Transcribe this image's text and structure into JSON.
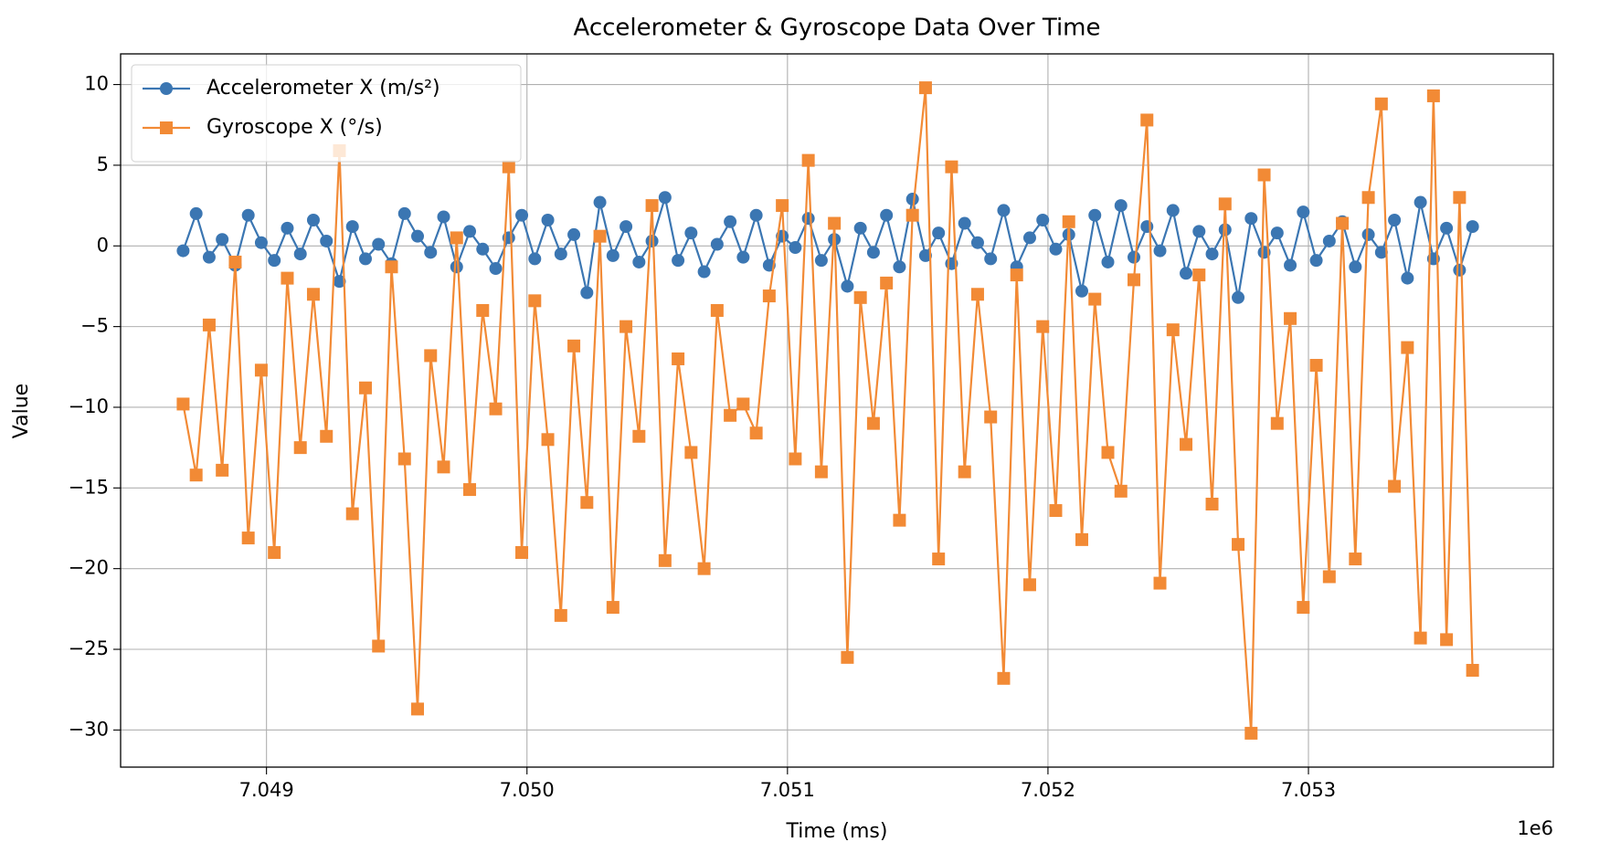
{
  "chart_data": {
    "type": "line",
    "title": "Accelerometer & Gyroscope Data Over Time",
    "x_label": "Time (ms)",
    "y_label": "Value",
    "x_offset_label": "1e6",
    "xlim": [
      7048440,
      7053940
    ],
    "ylim": [
      -32.3,
      11.9
    ],
    "xticks": [
      {
        "value": 7049000,
        "label": "7.049"
      },
      {
        "value": 7050000,
        "label": "7.050"
      },
      {
        "value": 7051000,
        "label": "7.051"
      },
      {
        "value": 7052000,
        "label": "7.052"
      },
      {
        "value": 7053000,
        "label": "7.053"
      }
    ],
    "yticks": [
      10,
      5,
      0,
      {
        "value": -5,
        "label": "−5"
      },
      {
        "value": -10,
        "label": "−10"
      },
      {
        "value": -15,
        "label": "−15"
      },
      {
        "value": -20,
        "label": "−20"
      },
      {
        "value": -25,
        "label": "−25"
      },
      {
        "value": -30,
        "label": "−30"
      }
    ],
    "grid": true,
    "legend": "upper left",
    "x": [
      7048680,
      7048730,
      7048780,
      7048830,
      7048880,
      7048930,
      7048980,
      7049030,
      7049080,
      7049130,
      7049180,
      7049230,
      7049280,
      7049330,
      7049380,
      7049430,
      7049480,
      7049530,
      7049580,
      7049630,
      7049680,
      7049730,
      7049780,
      7049830,
      7049880,
      7049930,
      7049980,
      7050030,
      7050080,
      7050130,
      7050180,
      7050230,
      7050280,
      7050330,
      7050380,
      7050430,
      7050480,
      7050530,
      7050580,
      7050630,
      7050680,
      7050730,
      7050780,
      7050830,
      7050880,
      7050930,
      7050980,
      7051030,
      7051080,
      7051130,
      7051180,
      7051230,
      7051280,
      7051330,
      7051380,
      7051430,
      7051480,
      7051530,
      7051580,
      7051630,
      7051680,
      7051730,
      7051780,
      7051830,
      7051880,
      7051930,
      7051980,
      7052030,
      7052080,
      7052130,
      7052180,
      7052230,
      7052280,
      7052330,
      7052380,
      7052430,
      7052480,
      7052530,
      7052580,
      7052630,
      7052680,
      7052730,
      7052780,
      7052830,
      7052880,
      7052930,
      7052980,
      7053030,
      7053080,
      7053130,
      7053180,
      7053230,
      7053280,
      7053330,
      7053380,
      7053430,
      7053480,
      7053530,
      7053580,
      7053630
    ],
    "series": [
      {
        "name": "Accelerometer X (m/s²)",
        "color": "#3b76b2",
        "marker": "circle",
        "values": [
          -0.3,
          2.0,
          -0.7,
          0.4,
          -1.2,
          1.9,
          0.2,
          -0.9,
          1.1,
          -0.5,
          1.6,
          0.3,
          -2.2,
          1.2,
          -0.8,
          0.1,
          -1.1,
          2.0,
          0.6,
          -0.4,
          1.8,
          -1.3,
          0.9,
          -0.2,
          -1.4,
          0.5,
          1.9,
          -0.8,
          1.6,
          -0.5,
          0.7,
          -2.9,
          2.7,
          -0.6,
          1.2,
          -1.0,
          0.3,
          3.0,
          -0.9,
          0.8,
          -1.6,
          0.1,
          1.5,
          -0.7,
          1.9,
          -1.2,
          0.6,
          -0.1,
          1.7,
          -0.9,
          0.4,
          -2.5,
          1.1,
          -0.4,
          1.9,
          -1.3,
          2.9,
          -0.6,
          0.8,
          -1.1,
          1.4,
          0.2,
          -0.8,
          2.2,
          -1.3,
          0.5,
          1.6,
          -0.2,
          0.7,
          -2.8,
          1.9,
          -1.0,
          2.5,
          -0.7,
          1.2,
          -0.3,
          2.2,
          -1.7,
          0.9,
          -0.5,
          1.0,
          -3.2,
          1.7,
          -0.4,
          0.8,
          -1.2,
          2.1,
          -0.9,
          0.3,
          1.5,
          -1.3,
          0.7,
          -0.4,
          1.6,
          -2.0,
          2.7,
          -0.8,
          1.1,
          -1.5,
          1.2
        ]
      },
      {
        "name": "Gyroscope X (°/s)",
        "color": "#f28a35",
        "marker": "square",
        "values": [
          -9.8,
          -14.2,
          -4.9,
          -13.9,
          -1.0,
          -18.1,
          -7.7,
          -19.0,
          -2.0,
          -12.5,
          -3.0,
          -11.8,
          5.9,
          -16.6,
          -8.8,
          -24.8,
          -1.3,
          -13.2,
          -28.7,
          -6.8,
          -13.7,
          0.5,
          -15.1,
          -4.0,
          -10.1,
          4.9,
          -19.0,
          -3.4,
          -12.0,
          -22.9,
          -6.2,
          -15.9,
          0.6,
          -22.4,
          -5.0,
          -11.8,
          2.5,
          -19.5,
          -7.0,
          -12.8,
          -20.0,
          -4.0,
          -10.5,
          -9.8,
          -11.6,
          -3.1,
          2.5,
          -13.2,
          5.3,
          -14.0,
          1.4,
          -25.5,
          -3.2,
          -11.0,
          -2.3,
          -17.0,
          1.9,
          9.8,
          -19.4,
          4.9,
          -14.0,
          -3.0,
          -10.6,
          -26.8,
          -1.8,
          -21.0,
          -5.0,
          -16.4,
          1.5,
          -18.2,
          -3.3,
          -12.8,
          -15.2,
          -2.1,
          7.8,
          -20.9,
          -5.2,
          -12.3,
          -1.8,
          -16.0,
          2.6,
          -18.5,
          -30.2,
          4.4,
          -11.0,
          -4.5,
          -22.4,
          -7.4,
          -20.5,
          1.4,
          -19.4,
          3.0,
          8.8,
          -14.9,
          -6.3,
          -24.3,
          9.3,
          -24.4,
          3.0,
          -26.3
        ]
      }
    ]
  }
}
